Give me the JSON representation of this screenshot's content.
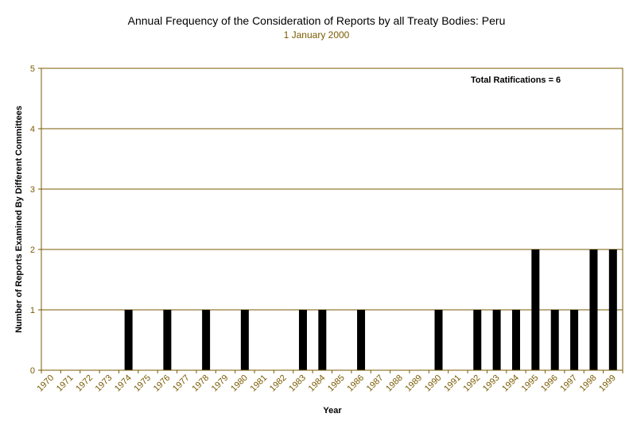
{
  "chart_data": {
    "type": "bar",
    "title": "Annual Frequency of the Consideration of Reports by all Treaty Bodies: Peru",
    "subtitle": "1 January 2000",
    "xlabel": "Year",
    "ylabel": "Number of Reports Examined By Different Committees",
    "annotation": "Total Ratifications = 6",
    "ylim": [
      0,
      5
    ],
    "yticks": [
      0,
      1,
      2,
      3,
      4,
      5
    ],
    "grid": true,
    "categories": [
      "1970",
      "1971",
      "1972",
      "1973",
      "1974",
      "1975",
      "1976",
      "1977",
      "1978",
      "1979",
      "1980",
      "1981",
      "1982",
      "1983",
      "1984",
      "1985",
      "1986",
      "1987",
      "1988",
      "1989",
      "1990",
      "1991",
      "1992",
      "1993",
      "1994",
      "1995",
      "1996",
      "1997",
      "1998",
      "1999"
    ],
    "values": [
      0,
      0,
      0,
      0,
      1,
      0,
      1,
      0,
      1,
      0,
      1,
      0,
      0,
      1,
      1,
      0,
      1,
      0,
      0,
      0,
      1,
      0,
      1,
      1,
      1,
      2,
      1,
      1,
      2,
      2
    ],
    "colors": {
      "bar": "#000000",
      "grid": "#7a5a00",
      "axis": "#7a5a00"
    }
  }
}
